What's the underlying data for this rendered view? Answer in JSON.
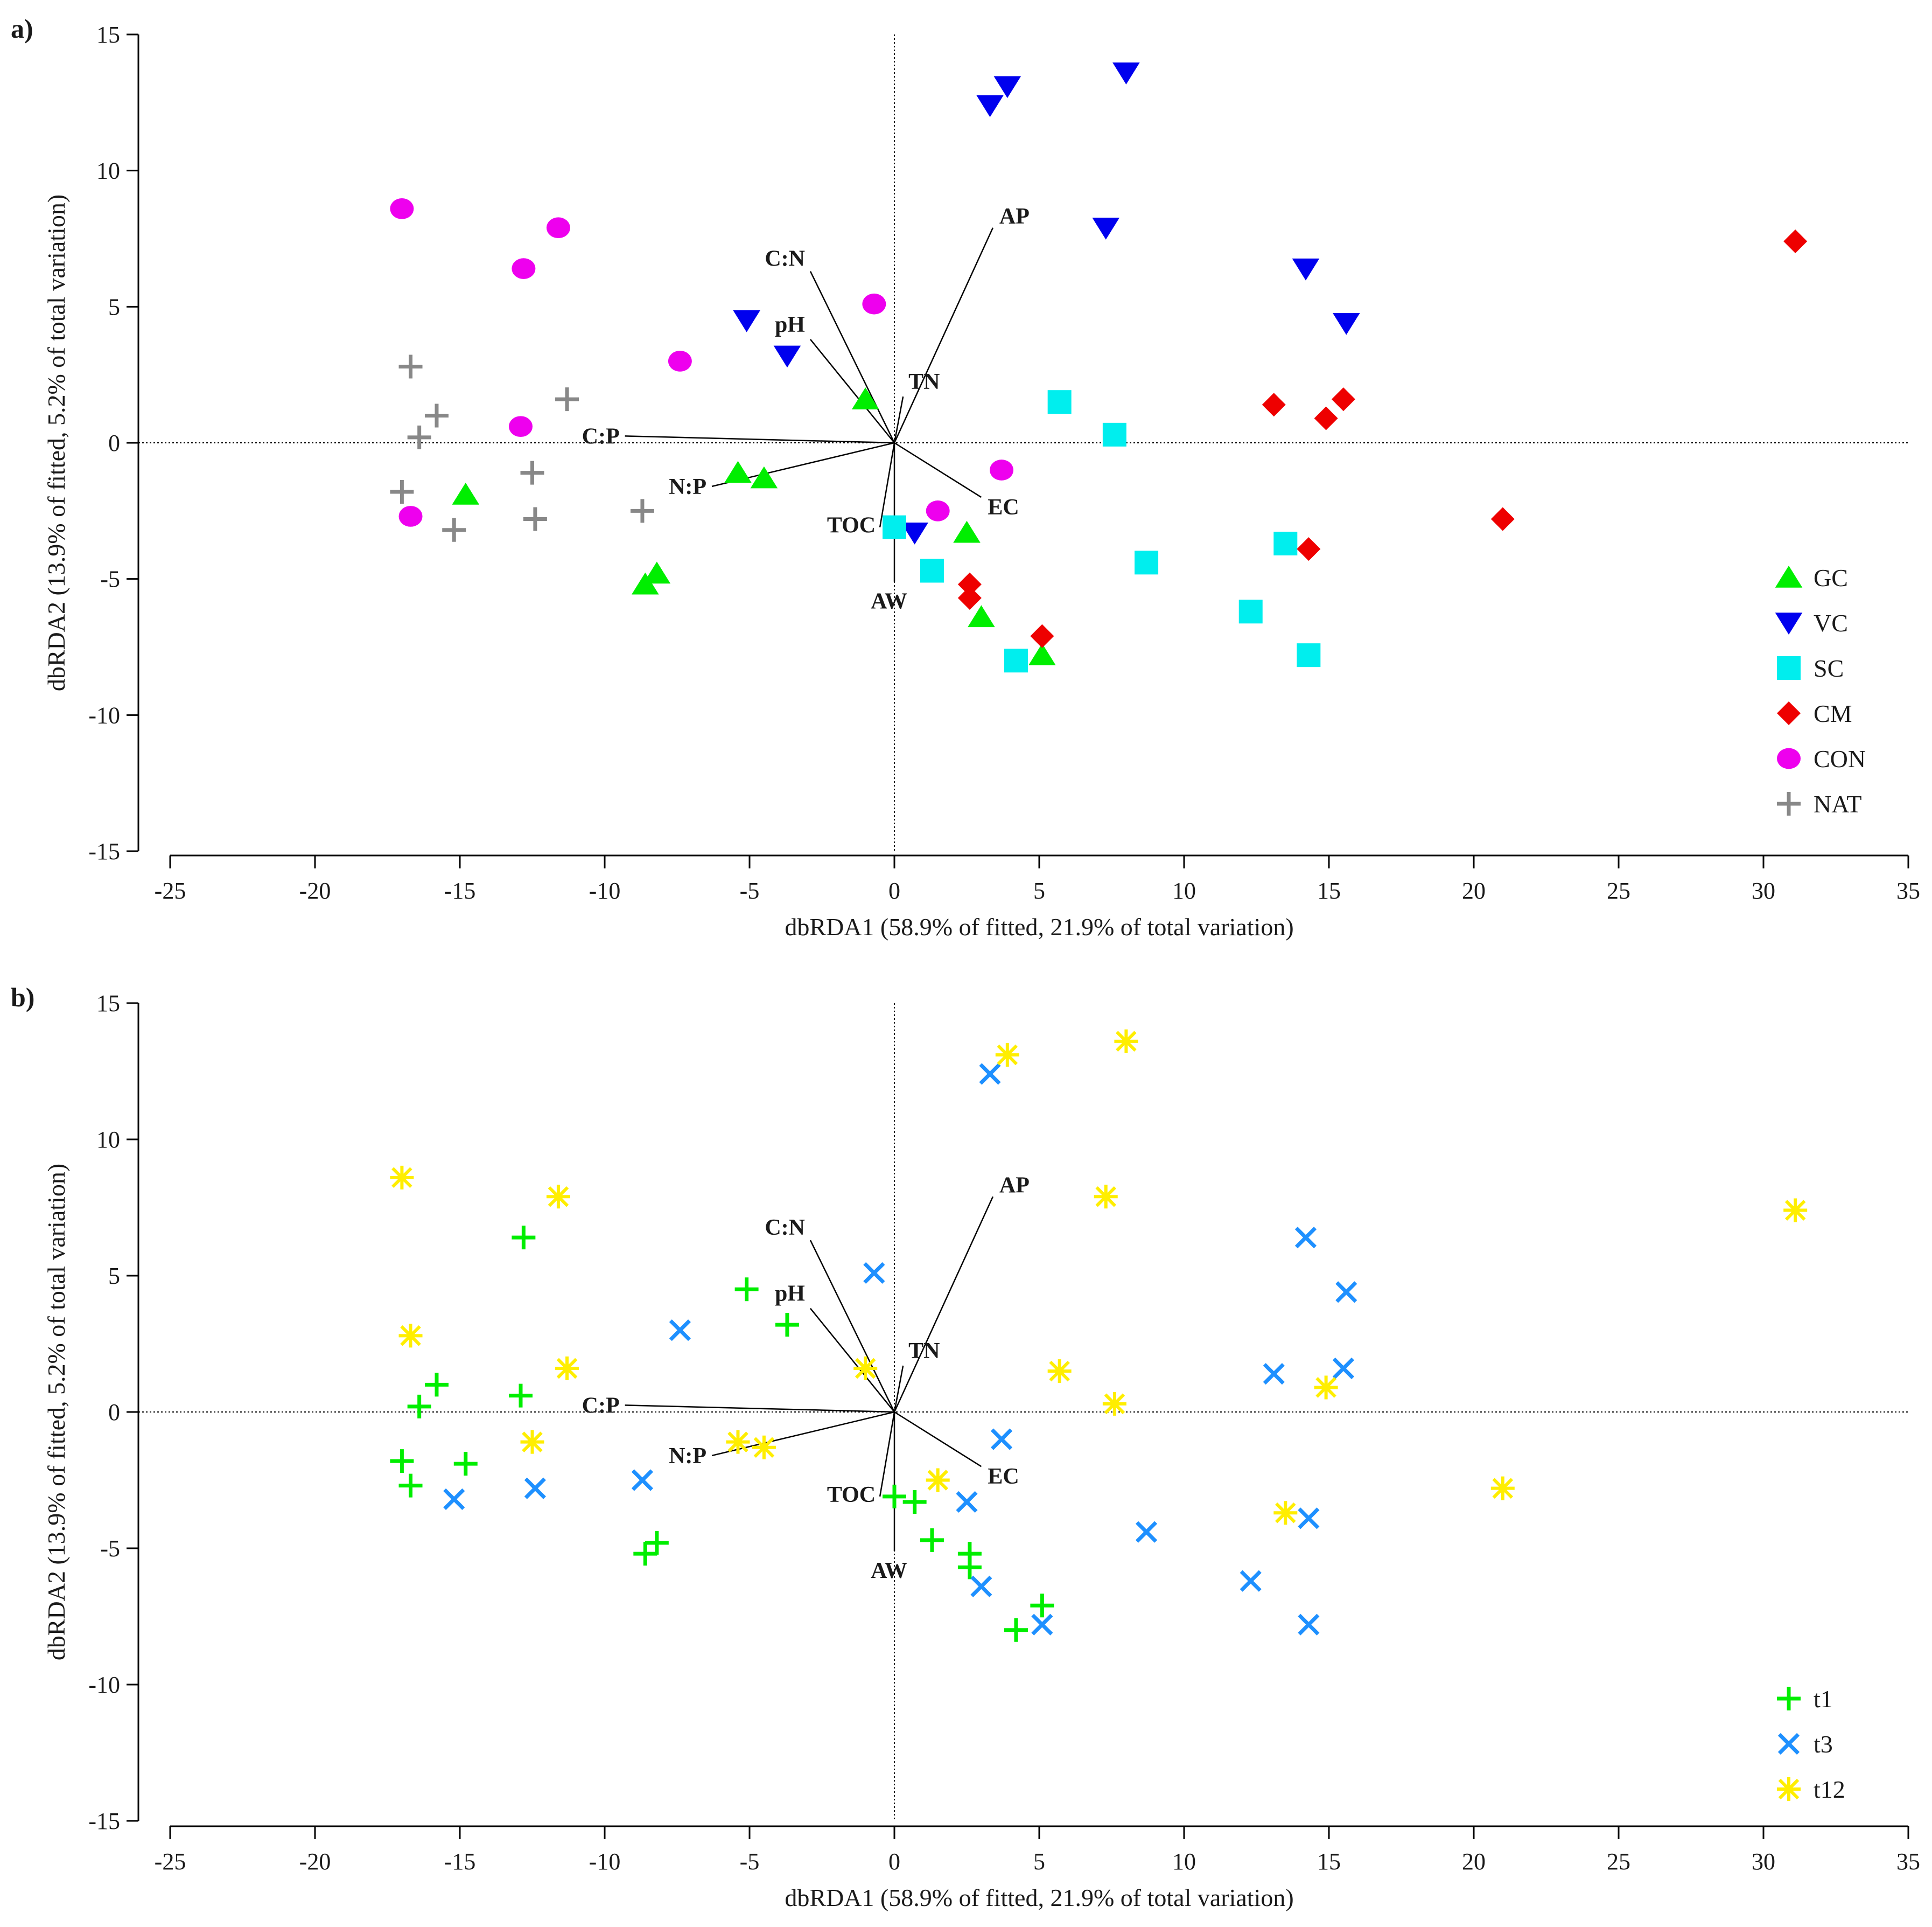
{
  "colors": {
    "GC": "#00ee00",
    "VC": "#0000ee",
    "SC": "#00eeee",
    "CM": "#ee0000",
    "CON": "#ee00ee",
    "NAT": "#888888",
    "t1": "#00ee00",
    "t3": "#1e90ff",
    "t12": "#ffee00"
  },
  "chart_data": [
    {
      "type": "scatter",
      "panel_label": "a)",
      "xlabel": "dbRDA1 (58.9% of fitted, 21.9% of total variation)",
      "ylabel": "dbRDA2 (13.9% of fitted, 5.2% of total variation)",
      "xlim": [
        -25,
        35
      ],
      "ylim": [
        -15,
        15
      ],
      "xticks": [
        "-25",
        "-20",
        "-15",
        "-10",
        "-5",
        "0",
        "5",
        "10",
        "15",
        "20",
        "25",
        "30",
        "35"
      ],
      "yticks": [
        "15",
        "10",
        "5",
        "0",
        "-5",
        "-10",
        "-15"
      ],
      "legend_position": "right-bottom",
      "vectors": [
        {
          "name": "AP",
          "x": 3.4,
          "y": 7.9
        },
        {
          "name": "C:N",
          "x": -2.9,
          "y": 6.3
        },
        {
          "name": "pH",
          "x": -2.9,
          "y": 3.8
        },
        {
          "name": "TN",
          "x": 0.3,
          "y": 1.7
        },
        {
          "name": "C:P",
          "x": -9.3,
          "y": 0.25
        },
        {
          "name": "N:P",
          "x": -6.3,
          "y": -1.6
        },
        {
          "name": "EC",
          "x": 3.0,
          "y": -2.0
        },
        {
          "name": "TOC",
          "x": -0.5,
          "y": -3.1
        },
        {
          "name": "AW",
          "x": 0.0,
          "y": -5.1
        }
      ],
      "series": [
        {
          "name": "GC",
          "marker": "triangle-up",
          "points": [
            [
              -1,
              1.6
            ],
            [
              -5.4,
              -1.1
            ],
            [
              -4.5,
              -1.3
            ],
            [
              -14.8,
              -1.9
            ],
            [
              -8.2,
              -4.8
            ],
            [
              -8.6,
              -5.2
            ],
            [
              2.5,
              -3.3
            ],
            [
              3.0,
              -6.4
            ],
            [
              5.1,
              -7.8
            ]
          ]
        },
        {
          "name": "VC",
          "marker": "triangle-down",
          "points": [
            [
              3.3,
              12.4
            ],
            [
              3.9,
              13.1
            ],
            [
              8.0,
              13.6
            ],
            [
              7.3,
              7.9
            ],
            [
              14.2,
              6.4
            ],
            [
              15.6,
              4.4
            ],
            [
              -5.1,
              4.5
            ],
            [
              -3.7,
              3.2
            ],
            [
              0.7,
              -3.3
            ]
          ]
        },
        {
          "name": "SC",
          "marker": "square",
          "points": [
            [
              5.7,
              1.5
            ],
            [
              7.6,
              0.3
            ],
            [
              0,
              -3.1
            ],
            [
              1.3,
              -4.7
            ],
            [
              8.7,
              -4.4
            ],
            [
              13.5,
              -3.7
            ],
            [
              12.3,
              -6.2
            ],
            [
              14.3,
              -7.8
            ],
            [
              4.2,
              -8.0
            ]
          ]
        },
        {
          "name": "CM",
          "marker": "diamond",
          "points": [
            [
              31.1,
              7.4
            ],
            [
              13.1,
              1.4
            ],
            [
              15.5,
              1.6
            ],
            [
              14.9,
              0.9
            ],
            [
              21.0,
              -2.8
            ],
            [
              14.3,
              -3.9
            ],
            [
              2.6,
              -5.2
            ],
            [
              2.6,
              -5.7
            ],
            [
              5.1,
              -7.1
            ]
          ]
        },
        {
          "name": "CON",
          "marker": "circle",
          "points": [
            [
              -17.0,
              8.6
            ],
            [
              -11.6,
              7.9
            ],
            [
              -12.8,
              6.4
            ],
            [
              -0.7,
              5.1
            ],
            [
              -7.4,
              3.0
            ],
            [
              -12.9,
              0.6
            ],
            [
              3.7,
              -1.0
            ],
            [
              1.5,
              -2.5
            ],
            [
              -16.7,
              -2.7
            ]
          ]
        },
        {
          "name": "NAT",
          "marker": "plus",
          "points": [
            [
              -16.7,
              2.8
            ],
            [
              -11.3,
              1.6
            ],
            [
              -15.8,
              1.0
            ],
            [
              -16.4,
              0.2
            ],
            [
              -12.5,
              -1.1
            ],
            [
              -17.0,
              -1.8
            ],
            [
              -8.7,
              -2.5
            ],
            [
              -12.4,
              -2.8
            ],
            [
              -15.2,
              -3.2
            ]
          ]
        }
      ]
    },
    {
      "type": "scatter",
      "panel_label": "b)",
      "xlabel": "dbRDA1 (58.9% of fitted, 21.9% of total variation)",
      "ylabel": "dbRDA2 (13.9% of fitted, 5.2% of total variation)",
      "xlim": [
        -25,
        35
      ],
      "ylim": [
        -15,
        15
      ],
      "xticks": [
        "-25",
        "-20",
        "-15",
        "-10",
        "-5",
        "0",
        "5",
        "10",
        "15",
        "20",
        "25",
        "30",
        "35"
      ],
      "yticks": [
        "15",
        "10",
        "5",
        "0",
        "-5",
        "-10",
        "-15"
      ],
      "legend_position": "right-bottom",
      "vectors": [
        {
          "name": "AP",
          "x": 3.4,
          "y": 7.9
        },
        {
          "name": "C:N",
          "x": -2.9,
          "y": 6.3
        },
        {
          "name": "pH",
          "x": -2.9,
          "y": 3.8
        },
        {
          "name": "TN",
          "x": 0.3,
          "y": 1.7
        },
        {
          "name": "C:P",
          "x": -9.3,
          "y": 0.25
        },
        {
          "name": "N:P",
          "x": -6.3,
          "y": -1.6
        },
        {
          "name": "EC",
          "x": 3.0,
          "y": -2.0
        },
        {
          "name": "TOC",
          "x": -0.5,
          "y": -3.1
        },
        {
          "name": "AW",
          "x": 0.0,
          "y": -5.1
        }
      ],
      "series": [
        {
          "name": "t1",
          "marker": "plus",
          "points": [
            [
              -12.8,
              6.4
            ],
            [
              -5.1,
              4.5
            ],
            [
              -3.7,
              3.2
            ],
            [
              -15.8,
              1.0
            ],
            [
              -12.9,
              0.6
            ],
            [
              -16.4,
              0.2
            ],
            [
              -17.0,
              -1.8
            ],
            [
              -14.8,
              -1.9
            ],
            [
              -16.7,
              -2.7
            ],
            [
              0,
              -3.1
            ],
            [
              0.7,
              -3.3
            ],
            [
              -8.2,
              -4.8
            ],
            [
              -8.6,
              -5.2
            ],
            [
              1.3,
              -4.7
            ],
            [
              2.6,
              -5.2
            ],
            [
              2.6,
              -5.7
            ],
            [
              5.1,
              -7.1
            ],
            [
              4.2,
              -8.0
            ]
          ]
        },
        {
          "name": "t3",
          "marker": "x",
          "points": [
            [
              3.3,
              12.4
            ],
            [
              -0.7,
              5.1
            ],
            [
              -7.4,
              3.0
            ],
            [
              14.2,
              6.4
            ],
            [
              15.6,
              4.4
            ],
            [
              13.1,
              1.4
            ],
            [
              15.5,
              1.6
            ],
            [
              3.7,
              -1.0
            ],
            [
              -8.7,
              -2.5
            ],
            [
              -12.4,
              -2.8
            ],
            [
              -15.2,
              -3.2
            ],
            [
              2.5,
              -3.3
            ],
            [
              8.7,
              -4.4
            ],
            [
              14.3,
              -3.9
            ],
            [
              12.3,
              -6.2
            ],
            [
              14.3,
              -7.8
            ],
            [
              3.0,
              -6.4
            ],
            [
              5.1,
              -7.8
            ]
          ]
        },
        {
          "name": "t12",
          "marker": "asterisk",
          "points": [
            [
              8.0,
              13.6
            ],
            [
              3.9,
              13.1
            ],
            [
              -17.0,
              8.6
            ],
            [
              -11.6,
              7.9
            ],
            [
              7.3,
              7.9
            ],
            [
              31.1,
              7.4
            ],
            [
              -16.7,
              2.8
            ],
            [
              -11.3,
              1.6
            ],
            [
              -1,
              1.6
            ],
            [
              5.7,
              1.5
            ],
            [
              7.6,
              0.3
            ],
            [
              14.9,
              0.9
            ],
            [
              -12.5,
              -1.1
            ],
            [
              -5.4,
              -1.1
            ],
            [
              -4.5,
              -1.3
            ],
            [
              1.5,
              -2.5
            ],
            [
              13.5,
              -3.7
            ],
            [
              21.0,
              -2.8
            ]
          ]
        }
      ]
    }
  ]
}
